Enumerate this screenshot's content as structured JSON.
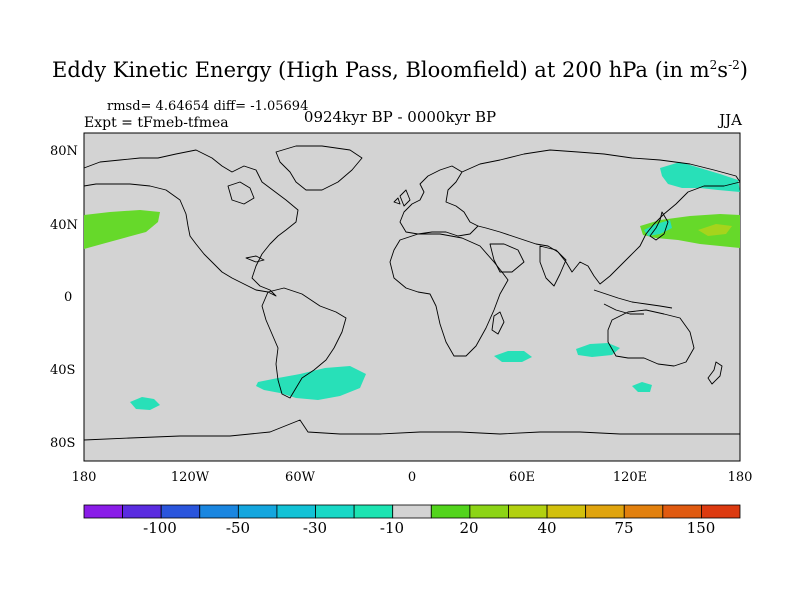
{
  "title": {
    "main": "Eddy Kinetic Energy (High Pass, Bloomfield) at 200 hPa (in m",
    "sup1": "2",
    "mid": "s",
    "sup2": "-2",
    "close": ")"
  },
  "stats": "rmsd= 4.64654 diff= -1.05694",
  "experiment": "Expt = tFmeb-tfmea",
  "period": "0924kyr BP - 0000kyr BP",
  "season": "JJA",
  "lat_labels": [
    "80N",
    "40N",
    "0",
    "40S",
    "80S"
  ],
  "lon_labels": [
    "180",
    "120W",
    "60W",
    "0",
    "60E",
    "120E",
    "180"
  ],
  "colorbar": {
    "colors": [
      "#8a1ce8",
      "#5a2ce0",
      "#2a55dc",
      "#1a86e0",
      "#14a6de",
      "#12c2d6",
      "#18d8c6",
      "#1ce4b2",
      "#d3d3d3",
      "#52d41c",
      "#8cd416",
      "#b2d010",
      "#d2c00c",
      "#e0a40e",
      "#e2800e",
      "#e05a10",
      "#dc3a10"
    ],
    "labels": [
      "-100",
      "-50",
      "-30",
      "-10",
      "20",
      "40",
      "75",
      "150"
    ]
  },
  "map": {
    "ocean_color": "#d3d3d3",
    "positive_color": "#66d92a",
    "positive_strong_color": "#a6d41c",
    "negative_color": "#28e0b8",
    "coast_color": "#000000"
  }
}
